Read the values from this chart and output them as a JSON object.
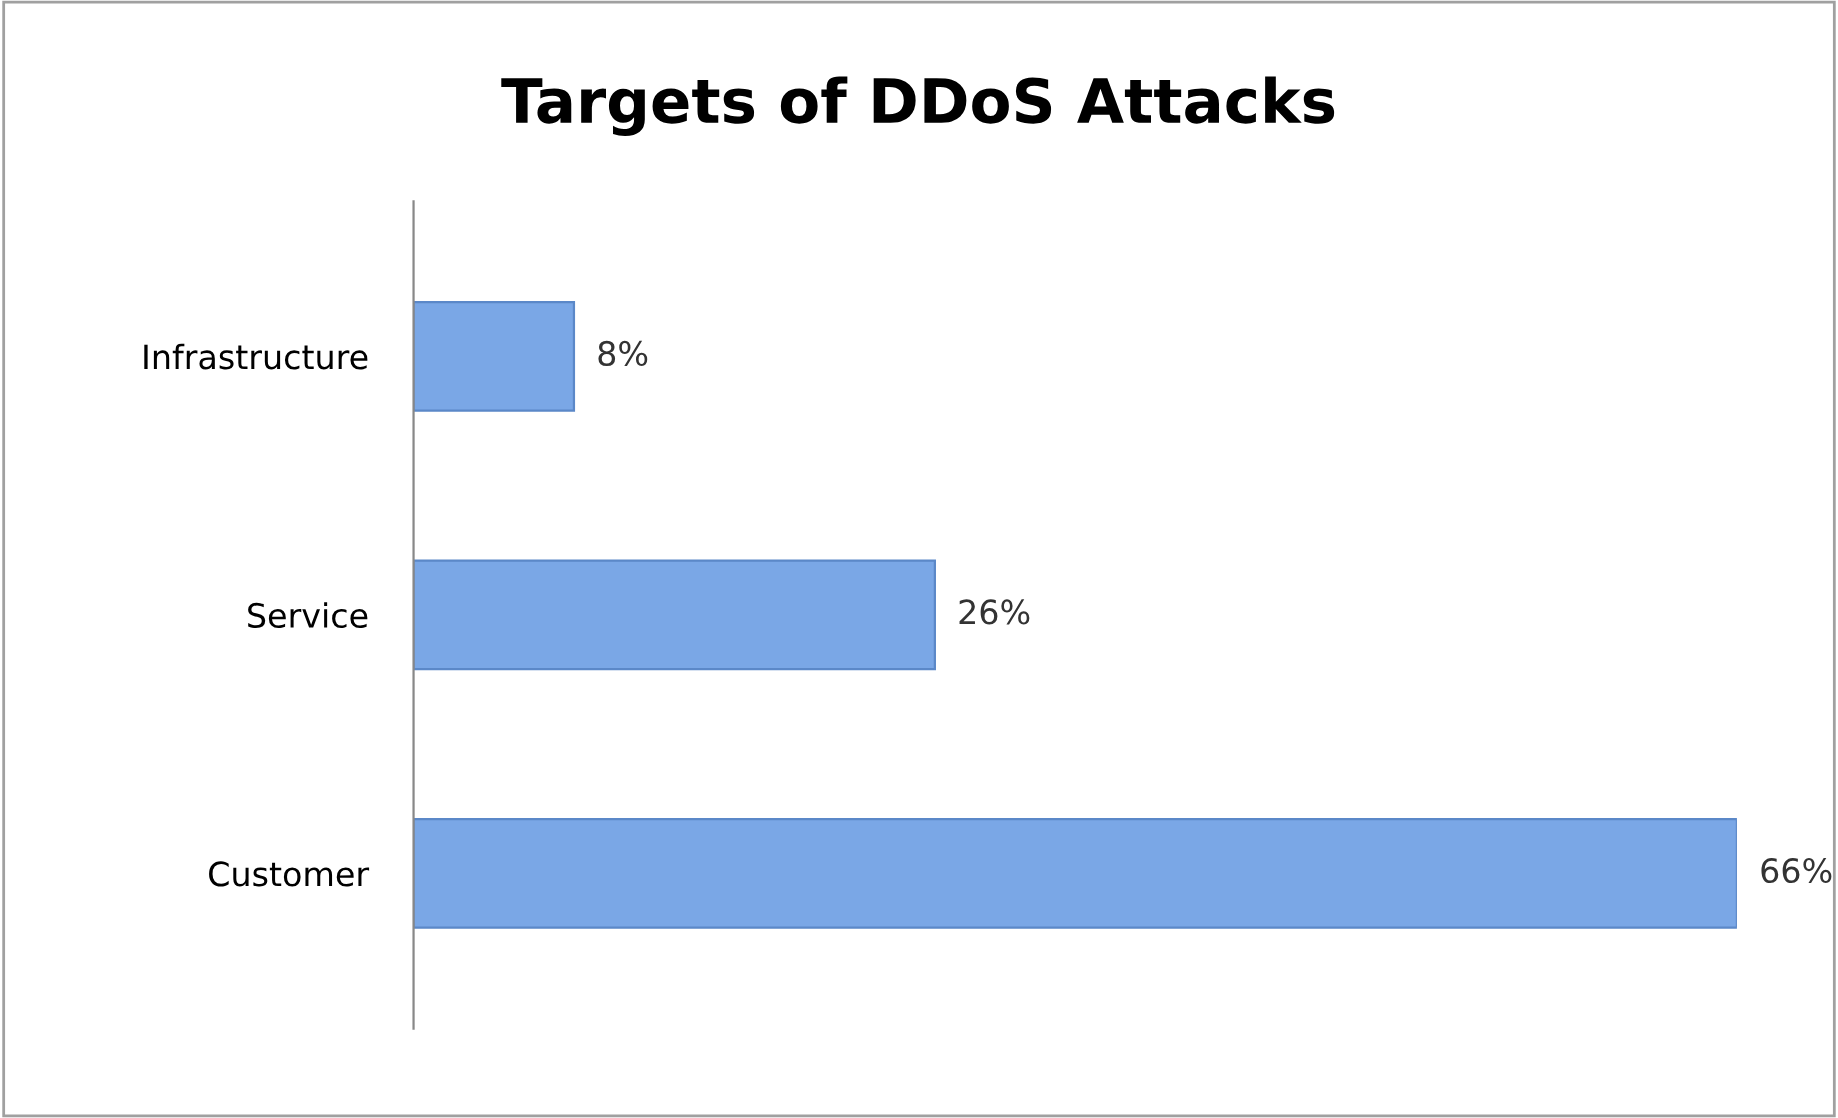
{
  "chart_data": {
    "type": "bar",
    "orientation": "horizontal",
    "title": "Targets of DDoS Attacks",
    "categories": [
      "Infrastructure",
      "Service",
      "Customer"
    ],
    "values": [
      8,
      26,
      66
    ],
    "value_labels": [
      "8%",
      "26%",
      "66%"
    ],
    "color": "#7aa7e6",
    "grid": false,
    "legend": false
  }
}
